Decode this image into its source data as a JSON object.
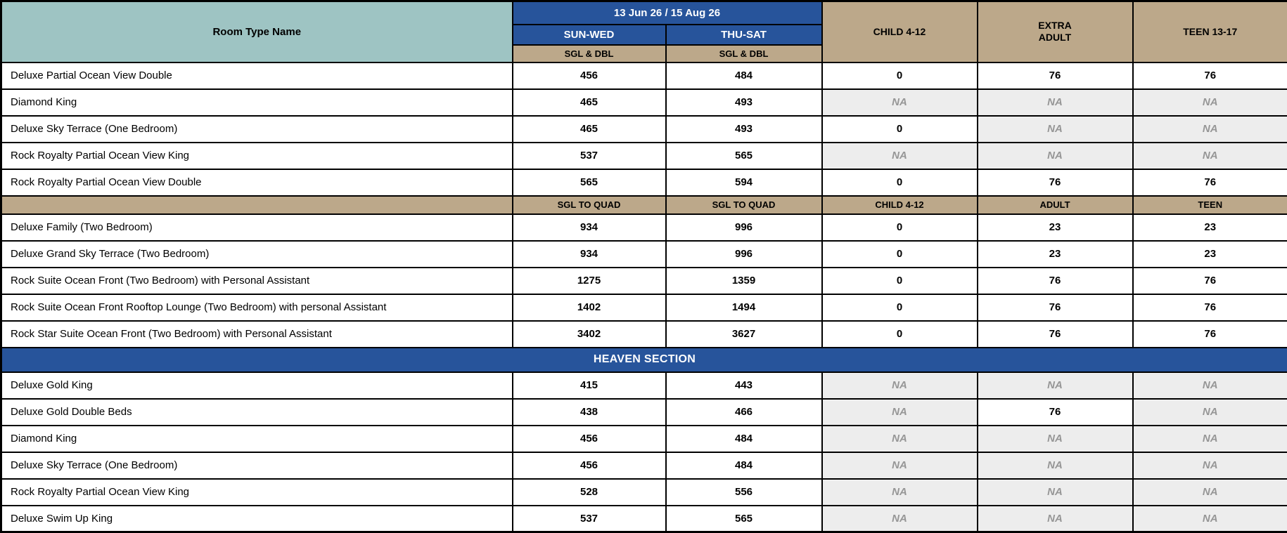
{
  "table": {
    "colors": {
      "teal": "#9EC4C3",
      "blue": "#27549B",
      "tan": "#BCA88A",
      "na_bg": "#EDEDED",
      "na_text": "#969696"
    },
    "columns": {
      "room": "Room Type Name",
      "date_range": "13 Jun 26 / 15 Aug 26",
      "sun_wed": "SUN-WED",
      "thu_sat": "THU-SAT",
      "sgl_dbl_1": "SGL & DBL",
      "sgl_dbl_2": "SGL & DBL",
      "child": "CHILD 4-12",
      "extra_adult": "EXTRA\nADULT",
      "teen": "TEEN 13-17"
    },
    "rows": [
      {
        "type": "data",
        "name": "Deluxe Partial Ocean View Double",
        "values": [
          "456",
          "484",
          "0",
          "76",
          "76"
        ]
      },
      {
        "type": "data",
        "name": "Diamond King",
        "values": [
          "465",
          "493",
          "NA",
          "NA",
          "NA"
        ]
      },
      {
        "type": "data",
        "name": "Deluxe Sky Terrace (One Bedroom)",
        "values": [
          "465",
          "493",
          "0",
          "NA",
          "NA"
        ]
      },
      {
        "type": "data",
        "name": "Rock Royalty Partial Ocean View King",
        "values": [
          "537",
          "565",
          "NA",
          "NA",
          "NA"
        ]
      },
      {
        "type": "data",
        "name": "Rock Royalty Partial Ocean View Double",
        "values": [
          "565",
          "594",
          "0",
          "76",
          "76"
        ]
      },
      {
        "type": "subheader",
        "cells": [
          "",
          "SGL TO QUAD",
          "SGL TO QUAD",
          "CHILD 4-12",
          "ADULT",
          "TEEN"
        ]
      },
      {
        "type": "data",
        "name": "Deluxe Family (Two Bedroom)",
        "values": [
          "934",
          "996",
          "0",
          "23",
          "23"
        ]
      },
      {
        "type": "data",
        "name": "Deluxe Grand Sky Terrace (Two Bedroom)",
        "values": [
          "934",
          "996",
          "0",
          "23",
          "23"
        ]
      },
      {
        "type": "data",
        "name": "Rock Suite Ocean Front (Two Bedroom) with Personal Assistant",
        "values": [
          "1275",
          "1359",
          "0",
          "76",
          "76"
        ]
      },
      {
        "type": "data",
        "name": "Rock Suite Ocean Front Rooftop Lounge (Two Bedroom) with personal Assistant",
        "values": [
          "1402",
          "1494",
          "0",
          "76",
          "76"
        ]
      },
      {
        "type": "data",
        "name": "Rock Star Suite Ocean Front (Two Bedroom) with Personal Assistant",
        "values": [
          "3402",
          "3627",
          "0",
          "76",
          "76"
        ]
      },
      {
        "type": "section",
        "label": "HEAVEN SECTION"
      },
      {
        "type": "data",
        "name": "Deluxe Gold King",
        "values": [
          "415",
          "443",
          "NA",
          "NA",
          "NA"
        ]
      },
      {
        "type": "data",
        "name": "Deluxe Gold Double Beds",
        "values": [
          "438",
          "466",
          "NA",
          "76",
          "NA"
        ]
      },
      {
        "type": "data",
        "name": "Diamond King",
        "values": [
          "456",
          "484",
          "NA",
          "NA",
          "NA"
        ]
      },
      {
        "type": "data",
        "name": "Deluxe Sky Terrace (One Bedroom)",
        "values": [
          "456",
          "484",
          "NA",
          "NA",
          "NA"
        ]
      },
      {
        "type": "data",
        "name": "Rock Royalty Partial Ocean View King",
        "values": [
          "528",
          "556",
          "NA",
          "NA",
          "NA"
        ]
      },
      {
        "type": "data",
        "name": "Deluxe Swim Up King",
        "values": [
          "537",
          "565",
          "NA",
          "NA",
          "NA"
        ]
      }
    ]
  }
}
